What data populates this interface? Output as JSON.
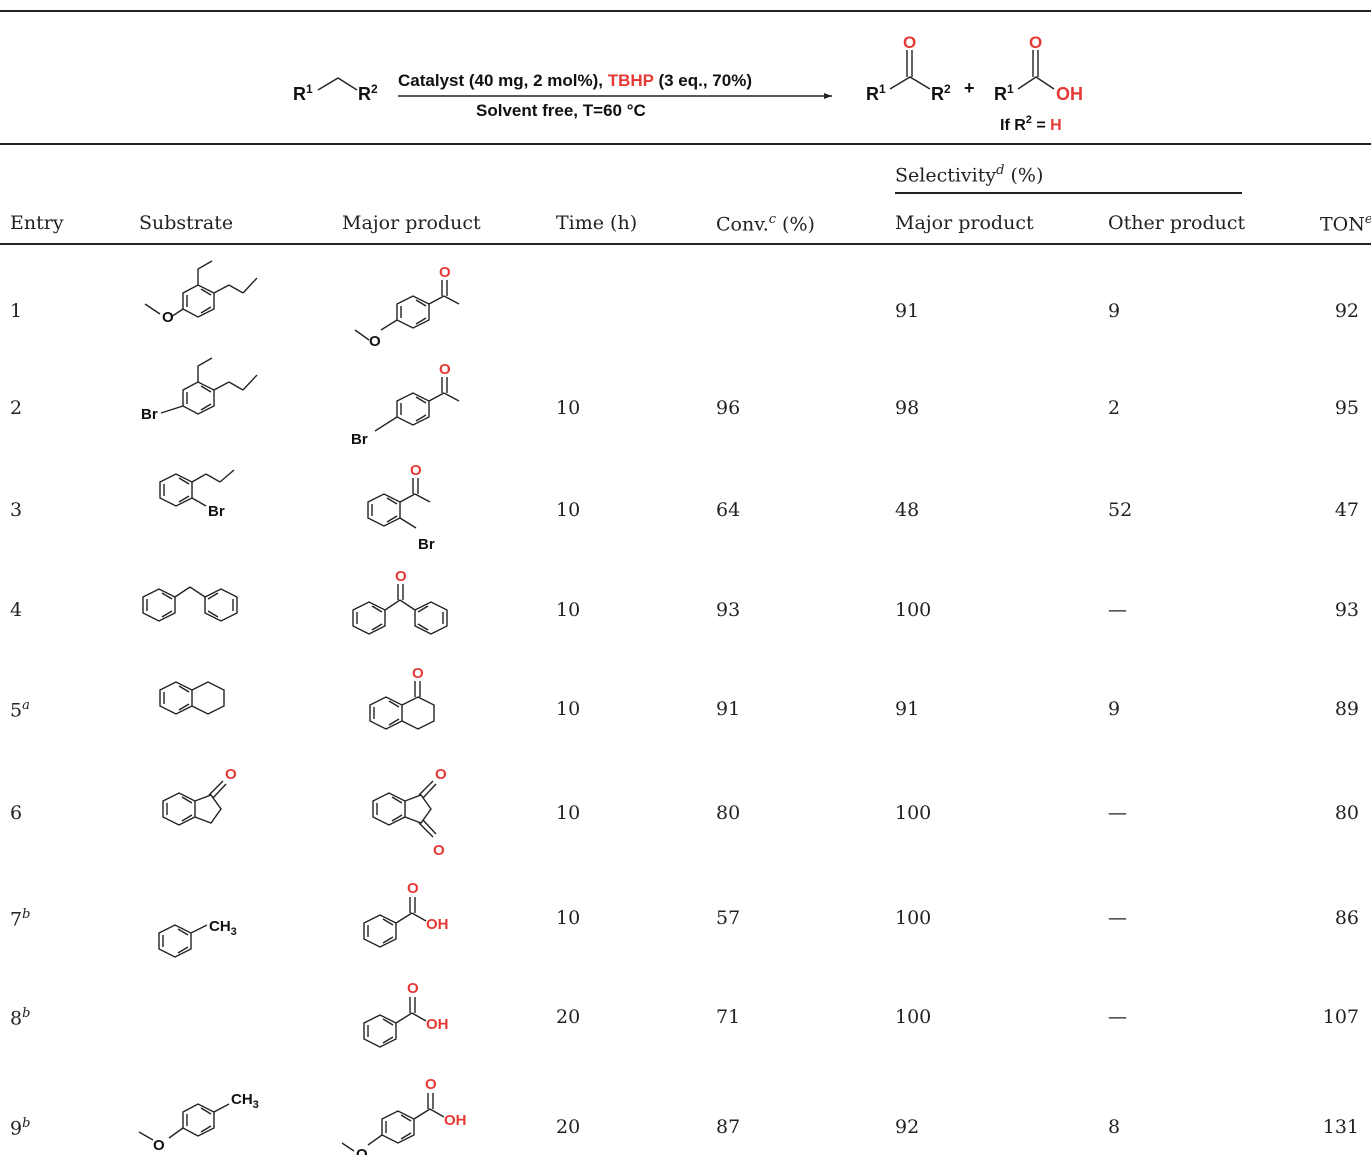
{
  "scheme": {
    "reactant_r1": "R",
    "reactant_r1_sup": "1",
    "reactant_r2": "R",
    "reactant_r2_sup": "2",
    "conditions_line1_a": "Catalyst (40 mg, 2 mol%), ",
    "conditions_line1_tbhp": "TBHP",
    "conditions_line1_b": " (3 eq., 70%)",
    "conditions_line2": "Solvent free, T=60 °C",
    "plus": "+",
    "oh_label": "OH",
    "o_label": "O",
    "if_text": "If R",
    "if_sup": "2",
    "if_eq": " = ",
    "if_h": "H"
  },
  "headers": {
    "selectivity": "Selectivity",
    "selectivity_sup": "d",
    "selectivity_unit": " (%)",
    "entry": "Entry",
    "substrate": "Substrate",
    "major_product": "Major product",
    "time": "Time (h)",
    "conv": "Conv.",
    "conv_sup": "c",
    "conv_unit": " (%)",
    "sel_major": "Major product",
    "sel_other": "Other product",
    "ton": "TON",
    "ton_sup": "e"
  },
  "rows": [
    {
      "entry": "1",
      "sup": "",
      "time": "",
      "conv": "",
      "major": "91",
      "other": "9",
      "ton": "92"
    },
    {
      "entry": "2",
      "sup": "",
      "time": "10",
      "conv": "96",
      "major": "98",
      "other": "2",
      "ton": "95"
    },
    {
      "entry": "3",
      "sup": "",
      "time": "10",
      "conv": "64",
      "major": "48",
      "other": "52",
      "ton": "47"
    },
    {
      "entry": "4",
      "sup": "",
      "time": "10",
      "conv": "93",
      "major": "100",
      "other": "—",
      "ton": "93"
    },
    {
      "entry": "5",
      "sup": "a",
      "time": "10",
      "conv": "91",
      "major": "91",
      "other": "9",
      "ton": "89"
    },
    {
      "entry": "6",
      "sup": "",
      "time": "10",
      "conv": "80",
      "major": "100",
      "other": "—",
      "ton": "80"
    },
    {
      "entry": "7",
      "sup": "b",
      "time": "10",
      "conv": "57",
      "major": "100",
      "other": "—",
      "ton": "86"
    },
    {
      "entry": "8",
      "sup": "b",
      "time": "20",
      "conv": "71",
      "major": "100",
      "other": "—",
      "ton": "107"
    },
    {
      "entry": "9",
      "sup": "b",
      "time": "20",
      "conv": "87",
      "major": "92",
      "other": "8",
      "ton": "131"
    }
  ],
  "atoms": {
    "o": "O",
    "oh": "OH",
    "br": "Br",
    "ch3": "CH",
    "ch3_sub": "3"
  }
}
